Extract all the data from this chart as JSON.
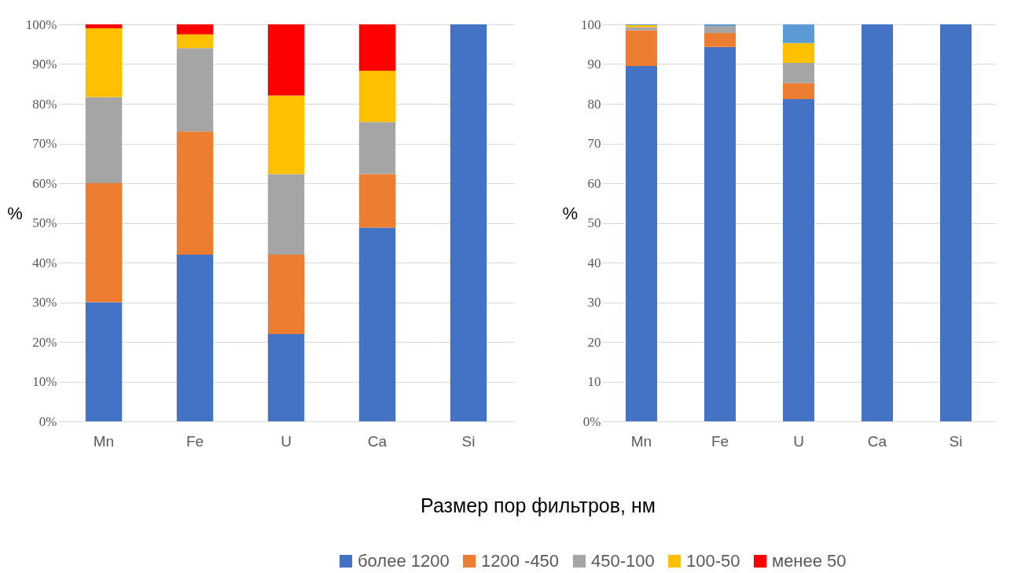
{
  "chart_data": [
    {
      "type": "bar",
      "stacked": true,
      "ylabel": "%",
      "xlabel": "Размер пор фильтров, нм",
      "legend": "bottom",
      "grid": "y",
      "categories": [
        "Mn",
        "Fe",
        "U",
        "Ca",
        "Si"
      ],
      "ylim": [
        0,
        100
      ],
      "yticks": [
        {
          "value": 0,
          "label": "0%"
        },
        {
          "value": 10,
          "label": "10%"
        },
        {
          "value": 20,
          "label": "20%"
        },
        {
          "value": 30,
          "label": "30%"
        },
        {
          "value": 40,
          "label": "40%"
        },
        {
          "value": 50,
          "label": "50%"
        },
        {
          "value": 60,
          "label": "60%"
        },
        {
          "value": 70,
          "label": "70%"
        },
        {
          "value": 80,
          "label": "80%"
        },
        {
          "value": 90,
          "label": "90%"
        },
        {
          "value": 100,
          "label": "100%"
        }
      ],
      "series": [
        {
          "name": "более 1200",
          "color": "#4472c4",
          "values": [
            30,
            42,
            22,
            48.8,
            100
          ]
        },
        {
          "name": "1200 -450",
          "color": "#ed7d31",
          "values": [
            30,
            31,
            20,
            13.5,
            0
          ]
        },
        {
          "name": "450-100",
          "color": "#a5a5a5",
          "values": [
            21.7,
            21,
            20.3,
            13.1,
            0
          ]
        },
        {
          "name": "100-50",
          "color": "#ffc000",
          "values": [
            17.3,
            3.5,
            19.8,
            12.9,
            0
          ]
        },
        {
          "name": "менее 50",
          "color": "#ff0000",
          "values": [
            1,
            2.5,
            17.9,
            11.7,
            0
          ]
        }
      ]
    },
    {
      "type": "bar",
      "stacked": true,
      "ylabel": "%",
      "grid": "y",
      "categories": [
        "Mn",
        "Fe",
        "U",
        "Ca",
        "Si"
      ],
      "ylim": [
        0,
        100
      ],
      "yticks": [
        {
          "value": 0,
          "label": "0%"
        },
        10,
        20,
        30,
        40,
        50,
        60,
        70,
        80,
        90,
        100
      ],
      "series": [
        {
          "color": "#4472c4",
          "values": [
            89.5,
            94.3,
            81.2,
            100,
            100
          ]
        },
        {
          "color": "#ed7d31",
          "values": [
            9,
            3.5,
            4,
            0,
            0
          ]
        },
        {
          "color": "#a5a5a5",
          "values": [
            0.8,
            1.8,
            5.1,
            0,
            0
          ]
        },
        {
          "color": "#ffc000",
          "values": [
            0.5,
            0,
            5,
            0,
            0
          ]
        },
        {
          "color": "#5b9bd5",
          "values": [
            0.2,
            0.4,
            4.7,
            0,
            0
          ]
        }
      ]
    }
  ]
}
